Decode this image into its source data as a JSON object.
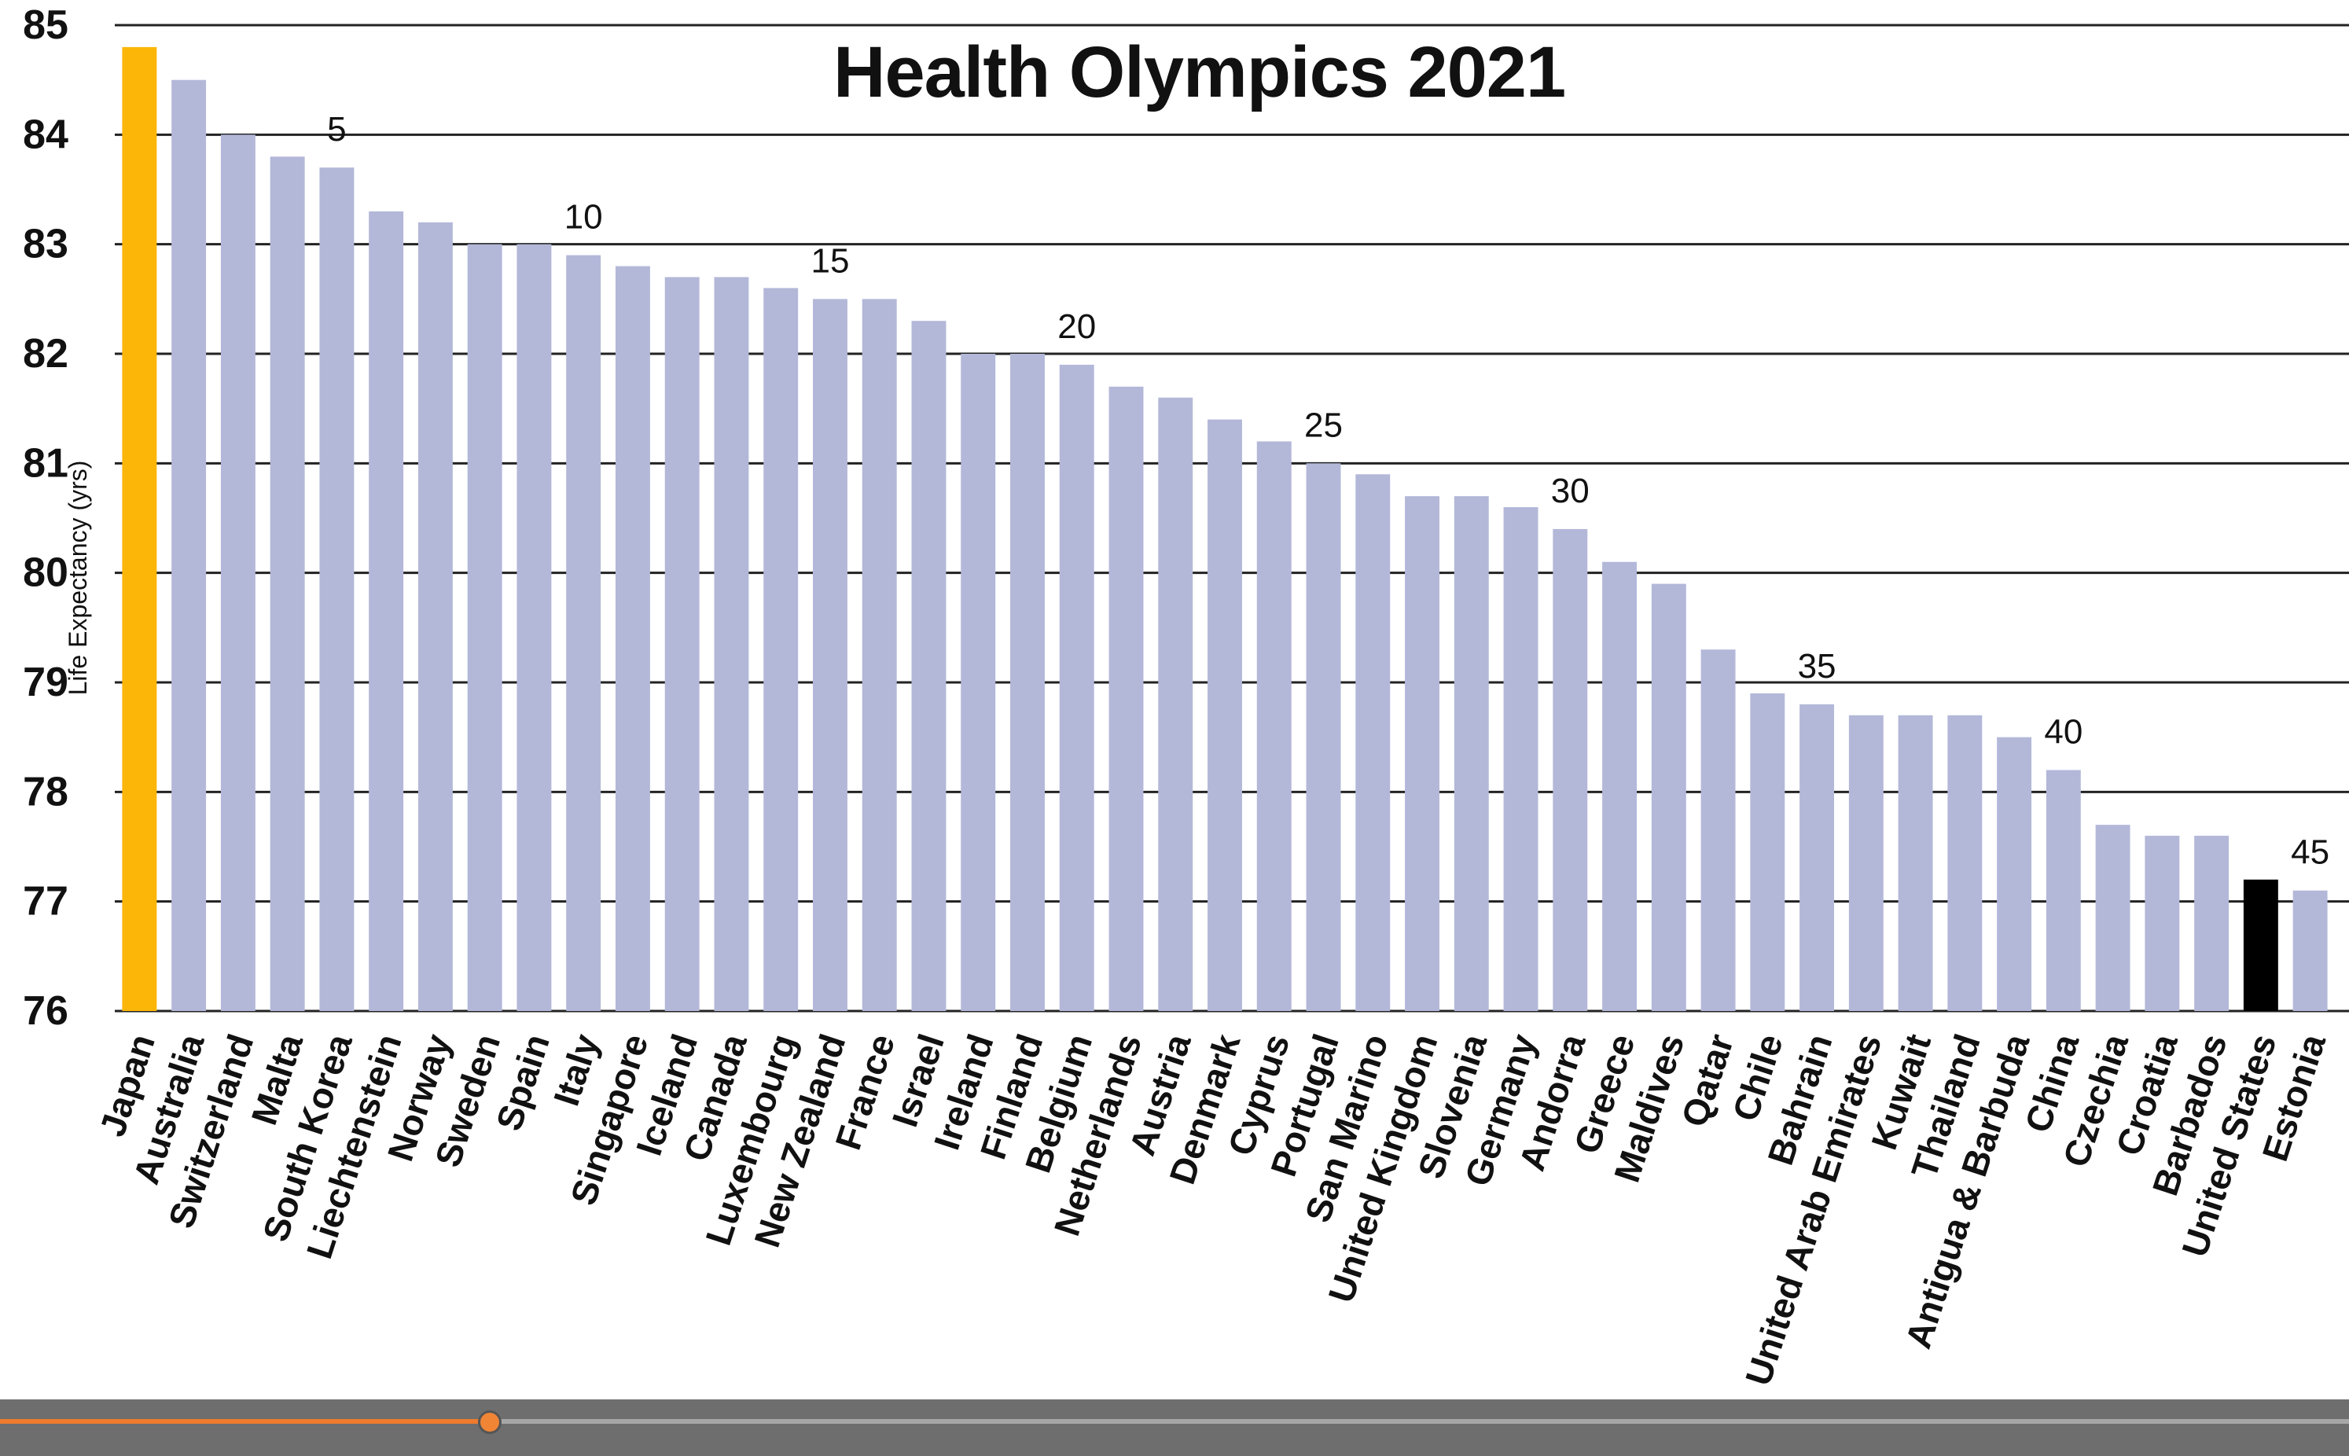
{
  "chart_data": {
    "type": "bar",
    "title": "Health Olympics 2021",
    "ylabel": "Life Expectancy (yrs)",
    "ylim": [
      76,
      85
    ],
    "yticks": [
      76,
      77,
      78,
      79,
      80,
      81,
      82,
      83,
      84,
      85
    ],
    "grid": true,
    "categories": [
      "Japan",
      "Australia",
      "Switzerland",
      "Malta",
      "South Korea",
      "Liechtenstein",
      "Norway",
      "Sweden",
      "Spain",
      "Italy",
      "Singapore",
      "Iceland",
      "Canada",
      "Luxembourg",
      "New Zealand",
      "France",
      "Israel",
      "Ireland",
      "Finland",
      "Belgium",
      "Netherlands",
      "Austria",
      "Denmark",
      "Cyprus",
      "Portugal",
      "San Marino",
      "United Kingdom",
      "Slovenia",
      "Germany",
      "Andorra",
      "Greece",
      "Maldives",
      "Qatar",
      "Chile",
      "Bahrain",
      "United Arab Emirates",
      "Kuwait",
      "Thailand",
      "Antigua & Barbuda",
      "China",
      "Czechia",
      "Croatia",
      "Barbados",
      "United States",
      "Estonia"
    ],
    "values": [
      84.8,
      84.5,
      84.0,
      83.8,
      83.7,
      83.3,
      83.2,
      83.0,
      83.0,
      82.9,
      82.8,
      82.7,
      82.7,
      82.6,
      82.5,
      82.5,
      82.3,
      82.0,
      82.0,
      81.9,
      81.7,
      81.6,
      81.4,
      81.2,
      81.0,
      80.9,
      80.7,
      80.7,
      80.6,
      80.4,
      80.1,
      79.9,
      79.3,
      78.9,
      78.8,
      78.7,
      78.7,
      78.7,
      78.5,
      78.2,
      77.7,
      77.6,
      77.6,
      77.2,
      77.1
    ],
    "rank_labels": [
      {
        "rank": 5,
        "text": "5"
      },
      {
        "rank": 10,
        "text": "10"
      },
      {
        "rank": 15,
        "text": "15"
      },
      {
        "rank": 20,
        "text": "20"
      },
      {
        "rank": 25,
        "text": "25"
      },
      {
        "rank": 30,
        "text": "30"
      },
      {
        "rank": 35,
        "text": "35"
      },
      {
        "rank": 40,
        "text": "40"
      },
      {
        "rank": 45,
        "text": "45"
      }
    ],
    "colors": {
      "default": "#b3b8d9",
      "highlight_first": "#fbb608",
      "highlight_us": "#000000",
      "gridline": "#222222"
    },
    "highlights": {
      "Japan": "highlight_first",
      "United States": "highlight_us"
    }
  },
  "player": {
    "progress": 0.208,
    "colors": {
      "bar": "#6e6e6e",
      "track": "#a7a7a7",
      "fill": "#ee7b2d"
    }
  }
}
